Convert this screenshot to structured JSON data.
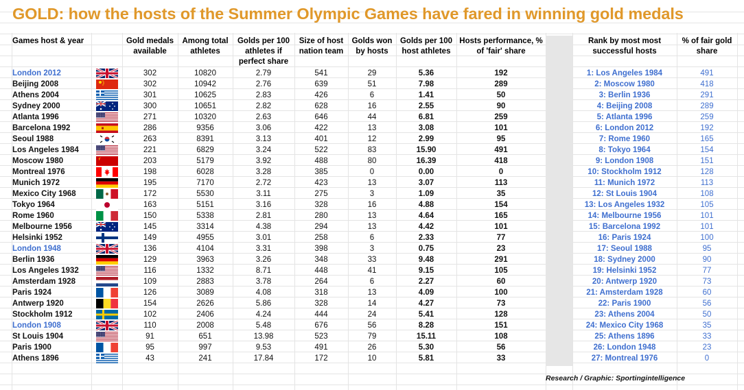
{
  "title": "GOLD: how the hosts of the Summer Olympic Games have fared in winning gold medals",
  "headers": {
    "host": "Games host & year",
    "gold": "Gold medals available",
    "athletes": "Among total athletes",
    "golds_per_100": "Golds per 100 athletes if perfect share",
    "team": "Size of host nation team",
    "won": "Golds won by hosts",
    "host_per_100": "Golds per 100 host athletes",
    "performance": "Hosts performance, % of 'fair' share",
    "rank": "Rank by most most successful hosts",
    "pct": "% of fair gold share"
  },
  "flag_colors": {
    "gb": "#012169",
    "cn": "#de2910",
    "gr": "#0d5eaf",
    "au": "#00247d",
    "us": "#b22234",
    "es": "#c60b1e",
    "kr": "#cd2e3a",
    "ru": "#cc0000",
    "ca": "#ff0000",
    "de": "#dd0000",
    "mx": "#006847",
    "jp": "#bc002d",
    "it": "#009246",
    "fi": "#003580",
    "nl": "#21468b",
    "fr": "#0055a4",
    "be": "#fdda24",
    "se": "#006aa7"
  },
  "rows": [
    {
      "host": "London 2012",
      "blue": true,
      "flag": "gb",
      "gold": "302",
      "athletes": "10820",
      "per100": "2.79",
      "team": "541",
      "won": "29",
      "hostper100": "5.36",
      "perf": "192"
    },
    {
      "host": "Beijing 2008",
      "blue": false,
      "flag": "cn",
      "gold": "302",
      "athletes": "10942",
      "per100": "2.76",
      "team": "639",
      "won": "51",
      "hostper100": "7.98",
      "perf": "289"
    },
    {
      "host": "Athens 2004",
      "blue": false,
      "flag": "gr",
      "gold": "301",
      "athletes": "10625",
      "per100": "2.83",
      "team": "426",
      "won": "6",
      "hostper100": "1.41",
      "perf": "50"
    },
    {
      "host": "Sydney 2000",
      "blue": false,
      "flag": "au",
      "gold": "300",
      "athletes": "10651",
      "per100": "2.82",
      "team": "628",
      "won": "16",
      "hostper100": "2.55",
      "perf": "90"
    },
    {
      "host": "Atlanta 1996",
      "blue": false,
      "flag": "us",
      "gold": "271",
      "athletes": "10320",
      "per100": "2.63",
      "team": "646",
      "won": "44",
      "hostper100": "6.81",
      "perf": "259"
    },
    {
      "host": "Barcelona 1992",
      "blue": false,
      "flag": "es",
      "gold": "286",
      "athletes": "9356",
      "per100": "3.06",
      "team": "422",
      "won": "13",
      "hostper100": "3.08",
      "perf": "101"
    },
    {
      "host": "Seoul 1988",
      "blue": false,
      "flag": "kr",
      "gold": "263",
      "athletes": "8391",
      "per100": "3.13",
      "team": "401",
      "won": "12",
      "hostper100": "2.99",
      "perf": "95"
    },
    {
      "host": "Los Angeles 1984",
      "blue": false,
      "flag": "us",
      "gold": "221",
      "athletes": "6829",
      "per100": "3.24",
      "team": "522",
      "won": "83",
      "hostper100": "15.90",
      "perf": "491"
    },
    {
      "host": "Moscow 1980",
      "blue": false,
      "flag": "ru",
      "gold": "203",
      "athletes": "5179",
      "per100": "3.92",
      "team": "488",
      "won": "80",
      "hostper100": "16.39",
      "perf": "418"
    },
    {
      "host": "Montreal 1976",
      "blue": false,
      "flag": "ca",
      "gold": "198",
      "athletes": "6028",
      "per100": "3.28",
      "team": "385",
      "won": "0",
      "hostper100": "0.00",
      "perf": "0"
    },
    {
      "host": "Munich 1972",
      "blue": false,
      "flag": "de",
      "gold": "195",
      "athletes": "7170",
      "per100": "2.72",
      "team": "423",
      "won": "13",
      "hostper100": "3.07",
      "perf": "113"
    },
    {
      "host": "Mexico City 1968",
      "blue": false,
      "flag": "mx",
      "gold": "172",
      "athletes": "5530",
      "per100": "3.11",
      "team": "275",
      "won": "3",
      "hostper100": "1.09",
      "perf": "35"
    },
    {
      "host": "Tokyo 1964",
      "blue": false,
      "flag": "jp",
      "gold": "163",
      "athletes": "5151",
      "per100": "3.16",
      "team": "328",
      "won": "16",
      "hostper100": "4.88",
      "perf": "154"
    },
    {
      "host": "Rome 1960",
      "blue": false,
      "flag": "it",
      "gold": "150",
      "athletes": "5338",
      "per100": "2.81",
      "team": "280",
      "won": "13",
      "hostper100": "4.64",
      "perf": "165"
    },
    {
      "host": "Melbourne 1956",
      "blue": false,
      "flag": "au",
      "gold": "145",
      "athletes": "3314",
      "per100": "4.38",
      "team": "294",
      "won": "13",
      "hostper100": "4.42",
      "perf": "101"
    },
    {
      "host": "Helsinki 1952",
      "blue": false,
      "flag": "fi",
      "gold": "149",
      "athletes": "4955",
      "per100": "3.01",
      "team": "258",
      "won": "6",
      "hostper100": "2.33",
      "perf": "77"
    },
    {
      "host": "London 1948",
      "blue": true,
      "flag": "gb",
      "gold": "136",
      "athletes": "4104",
      "per100": "3.31",
      "team": "398",
      "won": "3",
      "hostper100": "0.75",
      "perf": "23"
    },
    {
      "host": "Berlin 1936",
      "blue": false,
      "flag": "de",
      "gold": "129",
      "athletes": "3963",
      "per100": "3.26",
      "team": "348",
      "won": "33",
      "hostper100": "9.48",
      "perf": "291"
    },
    {
      "host": "Los Angeles 1932",
      "blue": false,
      "flag": "us",
      "gold": "116",
      "athletes": "1332",
      "per100": "8.71",
      "team": "448",
      "won": "41",
      "hostper100": "9.15",
      "perf": "105"
    },
    {
      "host": "Amsterdam 1928",
      "blue": false,
      "flag": "nl",
      "gold": "109",
      "athletes": "2883",
      "per100": "3.78",
      "team": "264",
      "won": "6",
      "hostper100": "2.27",
      "perf": "60"
    },
    {
      "host": "Paris 1924",
      "blue": false,
      "flag": "fr",
      "gold": "126",
      "athletes": "3089",
      "per100": "4.08",
      "team": "318",
      "won": "13",
      "hostper100": "4.09",
      "perf": "100"
    },
    {
      "host": "Antwerp 1920",
      "blue": false,
      "flag": "be",
      "gold": "154",
      "athletes": "2626",
      "per100": "5.86",
      "team": "328",
      "won": "14",
      "hostper100": "4.27",
      "perf": "73"
    },
    {
      "host": "Stockholm 1912",
      "blue": false,
      "flag": "se",
      "gold": "102",
      "athletes": "2406",
      "per100": "4.24",
      "team": "444",
      "won": "24",
      "hostper100": "5.41",
      "perf": "128"
    },
    {
      "host": "London 1908",
      "blue": true,
      "flag": "gb",
      "gold": "110",
      "athletes": "2008",
      "per100": "5.48",
      "team": "676",
      "won": "56",
      "hostper100": "8.28",
      "perf": "151"
    },
    {
      "host": "St Louis 1904",
      "blue": false,
      "flag": "us",
      "gold": "91",
      "athletes": "651",
      "per100": "13.98",
      "team": "523",
      "won": "79",
      "hostper100": "15.11",
      "perf": "108"
    },
    {
      "host": "Paris 1900",
      "blue": false,
      "flag": "fr",
      "gold": "95",
      "athletes": "997",
      "per100": "9.53",
      "team": "491",
      "won": "26",
      "hostper100": "5.30",
      "perf": "56"
    },
    {
      "host": "Athens 1896",
      "blue": false,
      "flag": "gr",
      "gold": "43",
      "athletes": "241",
      "per100": "17.84",
      "team": "172",
      "won": "10",
      "hostper100": "5.81",
      "perf": "33"
    }
  ],
  "ranking": [
    {
      "rank": "1: Los Angeles 1984",
      "pct": "491"
    },
    {
      "rank": "2: Moscow 1980",
      "pct": "418"
    },
    {
      "rank": "3: Berlin 1936",
      "pct": "291"
    },
    {
      "rank": "4: Beijing 2008",
      "pct": "289"
    },
    {
      "rank": "5: Atlanta 1996",
      "pct": "259"
    },
    {
      "rank": "6: London 2012",
      "pct": "192"
    },
    {
      "rank": "7: Rome 1960",
      "pct": "165"
    },
    {
      "rank": "8: Tokyo 1964",
      "pct": "154"
    },
    {
      "rank": "9: London 1908",
      "pct": "151"
    },
    {
      "rank": "10: Stockholm 1912",
      "pct": "128"
    },
    {
      "rank": "11: Munich 1972",
      "pct": "113"
    },
    {
      "rank": "12: St Louis 1904",
      "pct": "108"
    },
    {
      "rank": "13: Los Angeles 1932",
      "pct": "105"
    },
    {
      "rank": "14: Melbourne 1956",
      "pct": "101"
    },
    {
      "rank": "15: Barcelona 1992",
      "pct": "101"
    },
    {
      "rank": "16: Paris 1924",
      "pct": "100"
    },
    {
      "rank": "17: Seoul 1988",
      "pct": "95"
    },
    {
      "rank": "18: Sydney 2000",
      "pct": "90"
    },
    {
      "rank": "19: Helsinki 1952",
      "pct": "77"
    },
    {
      "rank": "20: Antwerp 1920",
      "pct": "73"
    },
    {
      "rank": "21: Amsterdam 1928",
      "pct": "60"
    },
    {
      "rank": "22: Paris 1900",
      "pct": "56"
    },
    {
      "rank": "23: Athens 2004",
      "pct": "50"
    },
    {
      "rank": "24: Mexico City 1968",
      "pct": "35"
    },
    {
      "rank": "25: Athens 1896",
      "pct": "33"
    },
    {
      "rank": "26: London 1948",
      "pct": "23"
    },
    {
      "rank": "27: Montreal 1976",
      "pct": "0"
    }
  ],
  "credit": "Research / Graphic: Sportingintelligence"
}
